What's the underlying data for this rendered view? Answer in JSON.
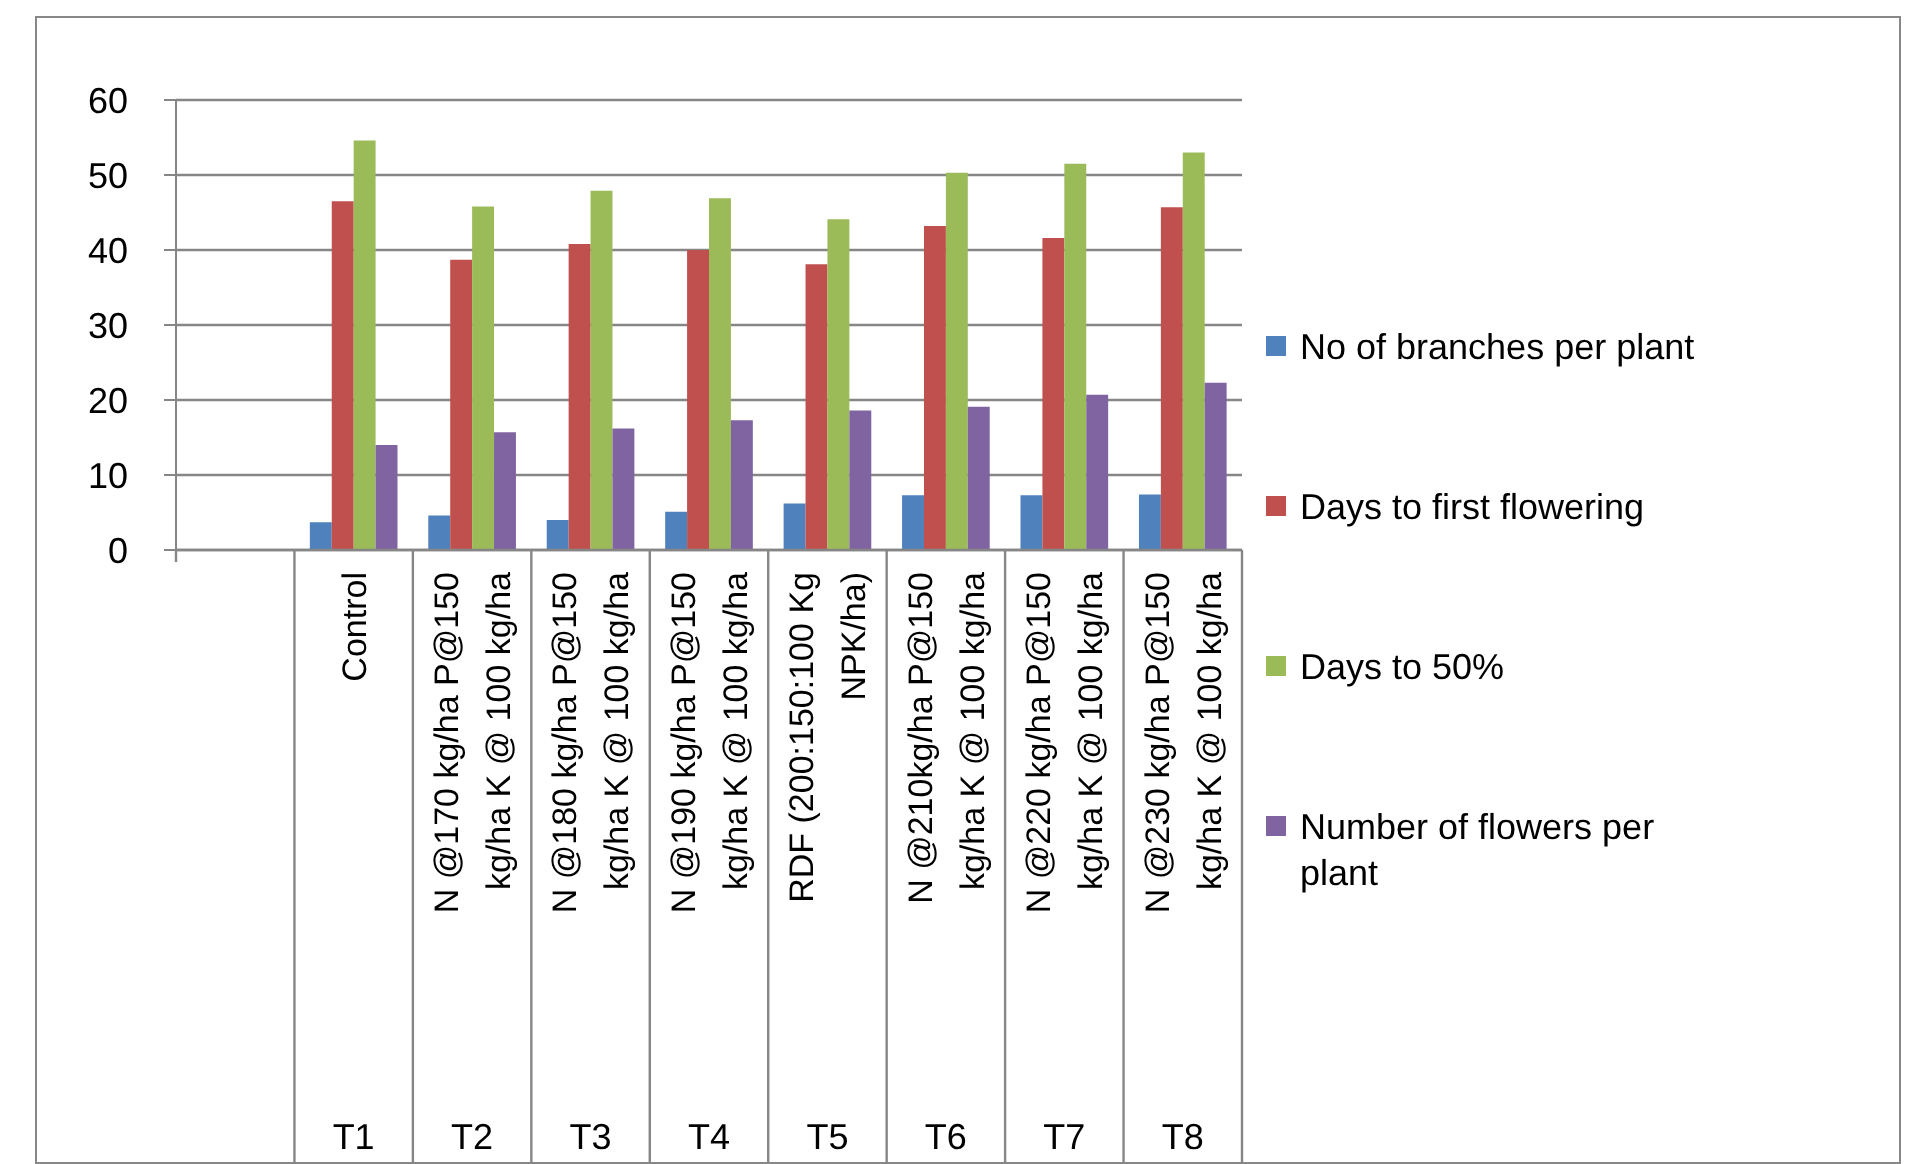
{
  "chart_data": {
    "type": "bar",
    "categories": [
      null,
      "Control",
      "N @170 kg/ha P@150 kg/ha K @ 100 kg/ha",
      "N @180 kg/ha P@150 kg/ha K @ 100 kg/ha",
      "N @190 kg/ha P@150 kg/ha K @ 100 kg/ha",
      "RDF (200:150:100 Kg NPK/ha)",
      "N @210kg/ha P@150 kg/ha K @ 100 kg/ha",
      "N @220 kg/ha P@150 kg/ha K @ 100 kg/ha",
      "N @230 kg/ha P@150 kg/ha K @ 100 kg/ha"
    ],
    "series": [
      {
        "name": "No of branches per plant",
        "color": "#4f81bd",
        "values": [
          null,
          3.7,
          4.6,
          4.0,
          5.1,
          6.2,
          7.3,
          7.3,
          7.4
        ]
      },
      {
        "name": "Days to first flowering",
        "color": "#c0504d",
        "values": [
          null,
          46.5,
          38.7,
          40.8,
          40.0,
          38.1,
          43.2,
          41.6,
          45.7
        ]
      },
      {
        "name": "Days to 50%",
        "color": "#9bbb59",
        "values": [
          null,
          54.6,
          45.8,
          47.9,
          46.9,
          44.1,
          50.3,
          51.5,
          53.0
        ]
      },
      {
        "name": "Number of flowers per plant",
        "color": "#8064a2",
        "values": [
          null,
          14.0,
          15.7,
          16.2,
          17.3,
          18.6,
          19.1,
          20.7,
          22.3
        ]
      }
    ],
    "ylim": [
      0,
      60
    ],
    "yticks": [
      0,
      10,
      20,
      30,
      40,
      50,
      60
    ],
    "grid": "y",
    "legend": "right",
    "annotations": [
      "T1",
      "T2",
      "T3",
      "T4",
      "T5",
      "T6",
      "T7",
      "T8"
    ]
  }
}
